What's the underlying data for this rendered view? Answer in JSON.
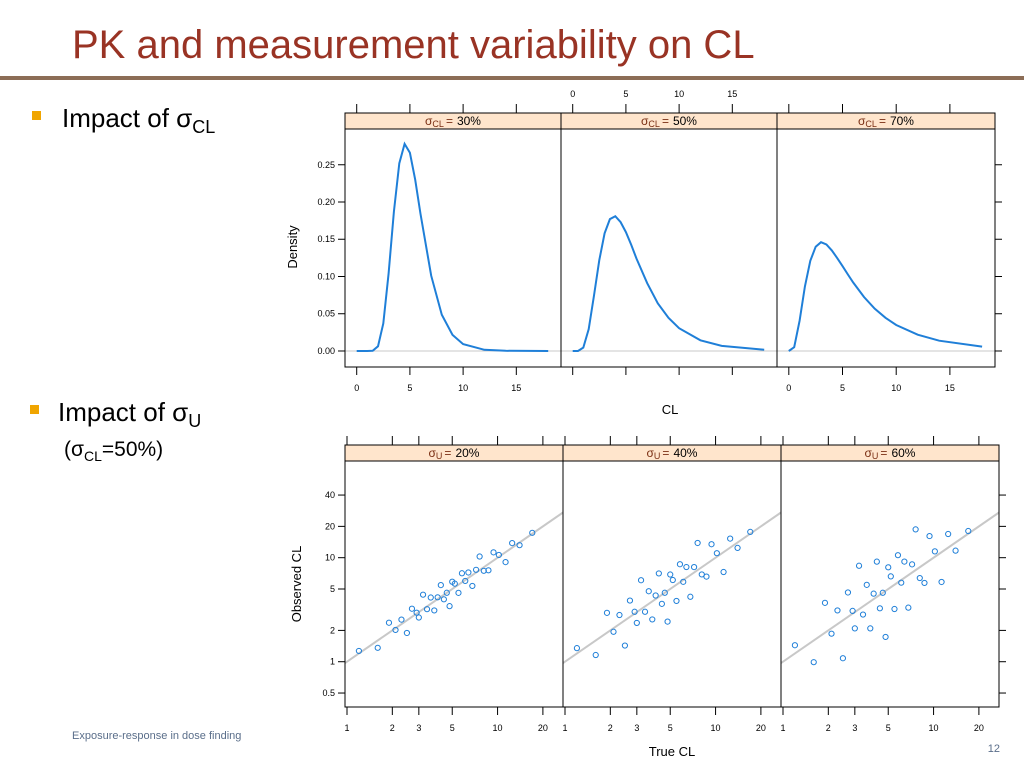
{
  "title": "PK and measurement variability on CL",
  "bullets": [
    {
      "text": "Impact of σ",
      "subscript": "CL"
    },
    {
      "text": "Impact of σ",
      "subscript": "U",
      "note": {
        "open": "(σ",
        "subscript": "CL",
        "close": "=50%)"
      }
    }
  ],
  "footer": "Exposure-response in dose finding",
  "page_number": "12",
  "chart_data": [
    {
      "type": "line",
      "xlabel": "CL",
      "ylabel": "Density",
      "color": "#1f7fd8",
      "x": [
        0,
        0.5,
        1,
        1.5,
        2,
        2.5,
        3,
        3.5,
        4,
        4.5,
        5,
        5.5,
        6,
        7,
        8,
        9,
        10,
        12,
        14,
        18
      ],
      "panels": [
        {
          "symbol": "σ",
          "subscript": "CL",
          "eq": "=",
          "label": "30%",
          "values": [
            0,
            0,
            0,
            0.0003,
            0.0063,
            0.0369,
            0.104,
            0.187,
            0.252,
            0.278,
            0.266,
            0.23,
            0.184,
            0.101,
            0.0487,
            0.0216,
            0.0092,
            0.0016,
            0.0003,
            0
          ]
        },
        {
          "symbol": "σ",
          "subscript": "CL",
          "eq": "=",
          "label": "50%",
          "values": [
            0,
            0,
            0.0045,
            0.0293,
            0.0745,
            0.122,
            0.158,
            0.177,
            0.181,
            0.173,
            0.1596,
            0.1425,
            0.124,
            0.091,
            0.064,
            0.0444,
            0.0306,
            0.0144,
            0.0068,
            0.0017
          ]
        },
        {
          "symbol": "σ",
          "subscript": "CL",
          "eq": "=",
          "label": "70%",
          "values": [
            0,
            0.0051,
            0.0406,
            0.0866,
            0.121,
            0.14,
            0.146,
            0.143,
            0.135,
            0.125,
            0.114,
            0.1027,
            0.0919,
            0.0725,
            0.0568,
            0.0445,
            0.0349,
            0.0218,
            0.0138,
            0.0059
          ]
        }
      ],
      "xlim": [
        -1.1,
        19.2
      ],
      "ylim": [
        -0.0215,
        0.298
      ],
      "xticks": [
        0,
        5,
        10,
        15
      ],
      "yticks": [
        {
          "value": 0,
          "label": "0.00"
        },
        {
          "value": 0.05,
          "label": "0.05"
        },
        {
          "value": 0.1,
          "label": "0.10"
        },
        {
          "value": 0.15,
          "label": "0.15"
        },
        {
          "value": 0.2,
          "label": "0.20"
        },
        {
          "value": 0.25,
          "label": "0.25"
        }
      ]
    },
    {
      "type": "scatter",
      "xlabel": "True CL",
      "ylabel": "Observed CL",
      "color": "#1f7fd8",
      "log": true,
      "x": [
        1.2,
        1.6,
        1.9,
        2.1,
        2.3,
        2.5,
        2.7,
        2.9,
        3.0,
        3.2,
        3.4,
        3.6,
        3.8,
        4.0,
        4.2,
        4.4,
        4.6,
        4.8,
        5.0,
        5.2,
        5.5,
        5.8,
        6.1,
        6.4,
        6.8,
        7.2,
        7.6,
        8.1,
        8.7,
        9.4,
        10.2,
        11.3,
        12.5,
        14,
        17
      ],
      "panels": [
        {
          "symbol": "σ",
          "subscript": "U",
          "eq": "=",
          "label": "20%",
          "values": [
            1.27,
            1.36,
            2.37,
            2.02,
            2.54,
            1.89,
            3.23,
            2.96,
            2.66,
            4.41,
            3.2,
            4.14,
            3.11,
            4.16,
            5.45,
            3.98,
            4.6,
            3.42,
            5.87,
            5.63,
            4.59,
            7.08,
            5.98,
            7.21,
            5.35,
            7.65,
            10.26,
            7.48,
            7.56,
            11.25,
            10.62,
            9.07,
            13.81,
            13.19,
            17.34
          ]
        },
        {
          "symbol": "σ",
          "subscript": "U",
          "eq": "=",
          "label": "40%",
          "values": [
            1.35,
            1.16,
            2.95,
            1.94,
            2.81,
            1.43,
            3.87,
            3.02,
            2.36,
            6.07,
            3.02,
            4.76,
            2.55,
            4.33,
            7.06,
            3.6,
            4.6,
            2.43,
            6.89,
            6.1,
            3.84,
            8.65,
            5.86,
            8.13,
            4.21,
            8.12,
            13.85,
            6.9,
            6.58,
            13.47,
            11.05,
            7.28,
            15.26,
            12.42,
            17.7
          ]
        },
        {
          "symbol": "σ",
          "subscript": "U",
          "eq": "=",
          "label": "60%",
          "values": [
            1.44,
            0.99,
            3.68,
            1.86,
            3.11,
            1.08,
            4.63,
            3.08,
            2.09,
            8.36,
            2.84,
            5.48,
            2.09,
            4.51,
            9.16,
            3.26,
            4.6,
            1.73,
            8.08,
            6.61,
            3.21,
            10.57,
            5.75,
            9.17,
            3.31,
            8.63,
            18.7,
            6.37,
            5.72,
            16.13,
            11.5,
            5.84,
            16.88,
            11.69,
            18.05
          ]
        }
      ],
      "xlim": [
        0.97,
        27.2
      ],
      "ylim": [
        0.367,
        85
      ],
      "xticks": [
        1,
        2,
        3,
        5,
        10,
        20
      ],
      "yticks": [
        0.5,
        1,
        2,
        5,
        10,
        20,
        40
      ]
    }
  ]
}
